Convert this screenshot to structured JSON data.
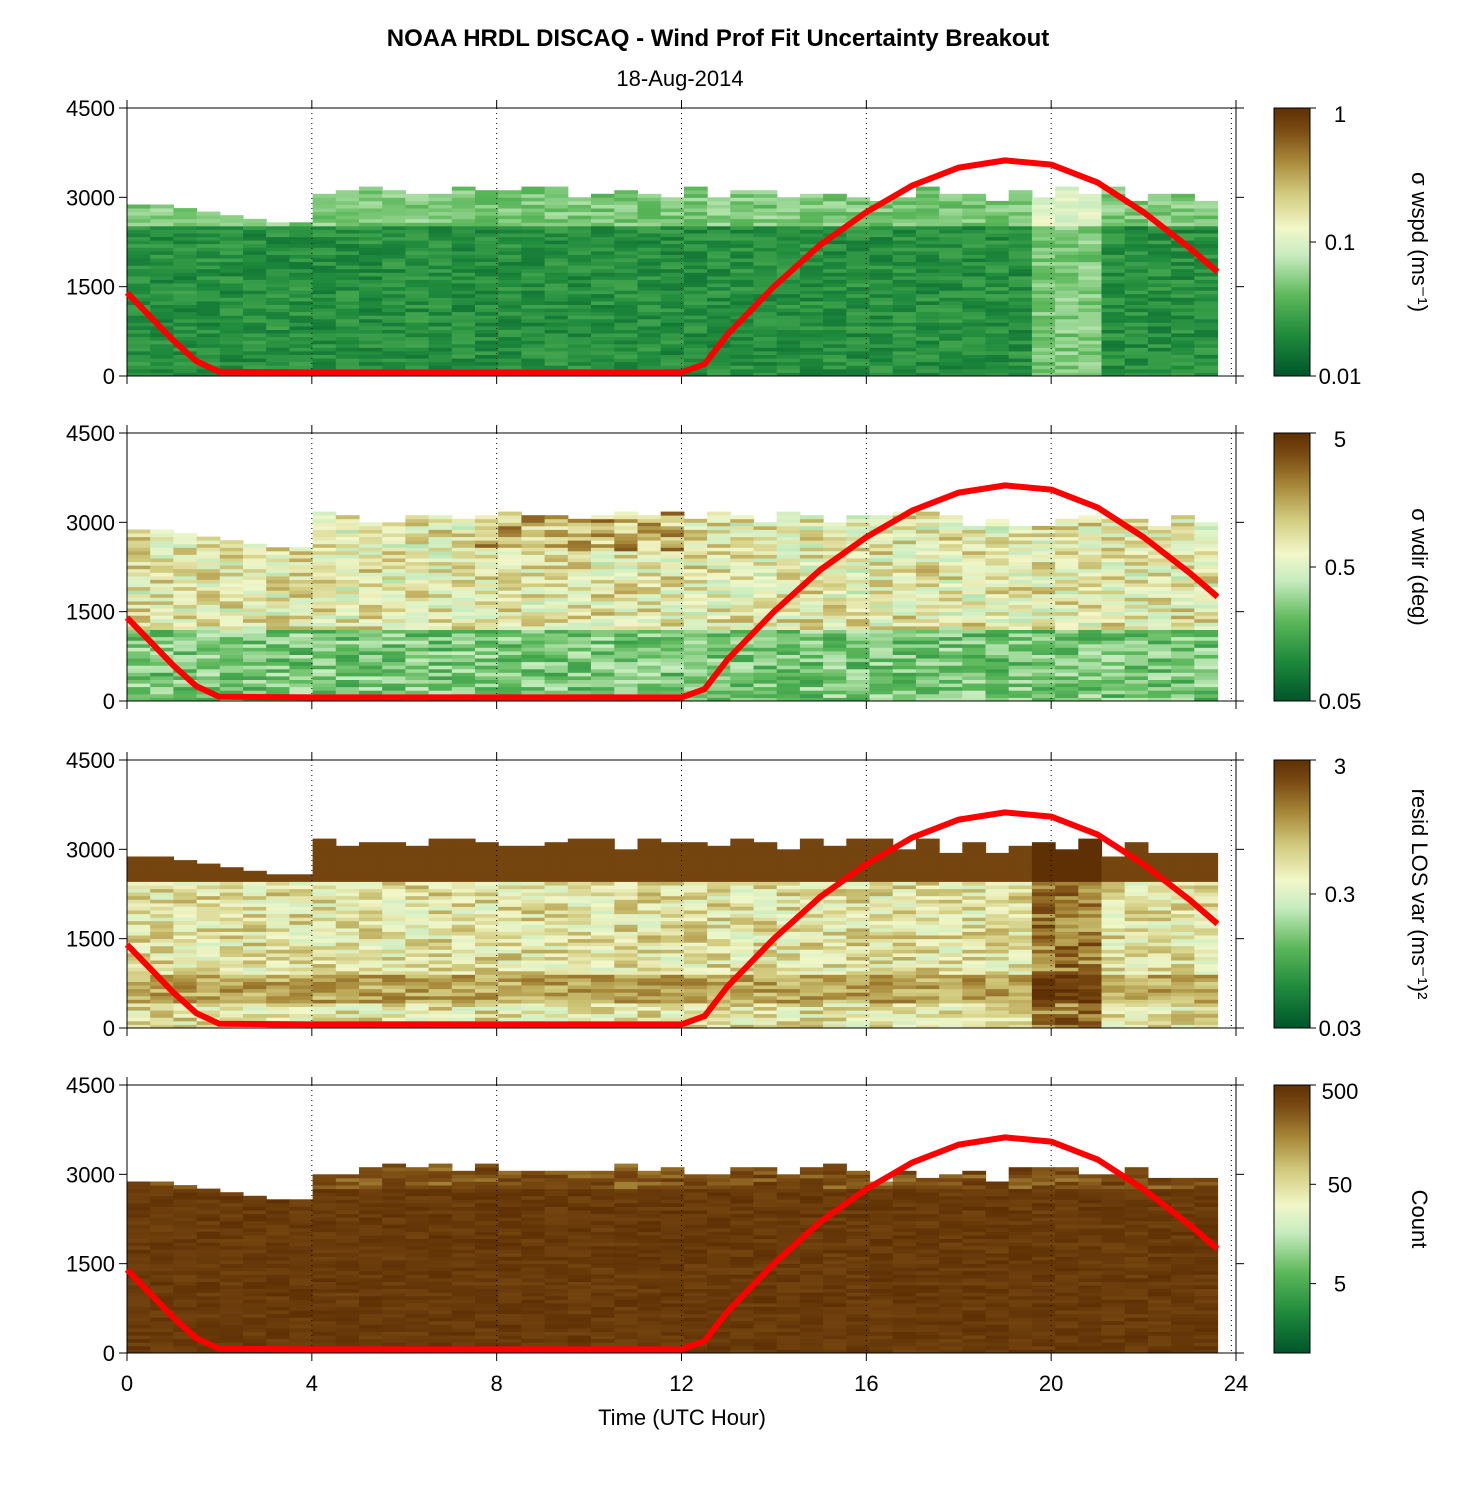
{
  "title": "NOAA HRDL DISCAQ - Wind Prof Fit Uncertainty Breakout",
  "subtitle": "18-Aug-2014",
  "chart_data": [
    {
      "type": "heatmap",
      "name": "sigma-wspd",
      "xlabel": "",
      "ylabel": "",
      "xlim": [
        0,
        24
      ],
      "ylim": [
        0,
        4500
      ],
      "yticks": [
        "0",
        "1500",
        "3000",
        "4500"
      ],
      "colorbar": {
        "label": "σ wspd (ms⁻¹)",
        "scale": "log",
        "range": [
          0.01,
          1
        ],
        "ticks": [
          "0.01",
          "0.1",
          "1"
        ]
      },
      "overlay_line": {
        "color": "#ff0000",
        "x": [
          0,
          0.5,
          1,
          1.5,
          2,
          4,
          8,
          12,
          12.5,
          13,
          14,
          15,
          16,
          17,
          18,
          19,
          20,
          21,
          22,
          23,
          23.6
        ],
        "y": [
          1400,
          1000,
          600,
          250,
          70,
          60,
          60,
          60,
          200,
          700,
          1500,
          2200,
          2750,
          3200,
          3500,
          3620,
          3550,
          3250,
          2750,
          2150,
          1750
        ]
      }
    },
    {
      "type": "heatmap",
      "name": "sigma-wdir",
      "xlabel": "",
      "ylabel": "",
      "xlim": [
        0,
        24
      ],
      "ylim": [
        0,
        4500
      ],
      "yticks": [
        "0",
        "1500",
        "3000",
        "4500"
      ],
      "colorbar": {
        "label": "σ wdir (deg)",
        "scale": "log",
        "range": [
          0.05,
          5
        ],
        "ticks": [
          "0.05",
          "0.5",
          "5"
        ]
      },
      "overlay_line": {
        "color": "#ff0000",
        "x": [
          0,
          0.5,
          1,
          1.5,
          2,
          4,
          8,
          12,
          12.5,
          13,
          14,
          15,
          16,
          17,
          18,
          19,
          20,
          21,
          22,
          23,
          23.6
        ],
        "y": [
          1400,
          1000,
          600,
          250,
          70,
          60,
          60,
          60,
          200,
          700,
          1500,
          2200,
          2750,
          3200,
          3500,
          3620,
          3550,
          3250,
          2750,
          2150,
          1750
        ]
      }
    },
    {
      "type": "heatmap",
      "name": "resid-los-var",
      "xlabel": "",
      "ylabel": "",
      "xlim": [
        0,
        24
      ],
      "ylim": [
        0,
        4500
      ],
      "yticks": [
        "0",
        "1500",
        "3000",
        "4500"
      ],
      "colorbar": {
        "label": "resid LOS var (ms⁻¹)²",
        "scale": "log",
        "range": [
          0.03,
          3
        ],
        "ticks": [
          "0.03",
          "0.3",
          "3"
        ]
      },
      "overlay_line": {
        "color": "#ff0000",
        "x": [
          0,
          0.5,
          1,
          1.5,
          2,
          4,
          8,
          12,
          12.5,
          13,
          14,
          15,
          16,
          17,
          18,
          19,
          20,
          21,
          22,
          23,
          23.6
        ],
        "y": [
          1400,
          1000,
          600,
          250,
          70,
          60,
          60,
          60,
          200,
          700,
          1500,
          2200,
          2750,
          3200,
          3500,
          3620,
          3550,
          3250,
          2750,
          2150,
          1750
        ]
      }
    },
    {
      "type": "heatmap",
      "name": "count",
      "xlabel": "Time (UTC Hour)",
      "ylabel": "",
      "xlim": [
        0,
        24
      ],
      "ylim": [
        0,
        4500
      ],
      "xticks": [
        "0",
        "4",
        "8",
        "12",
        "16",
        "20",
        "24"
      ],
      "yticks": [
        "0",
        "1500",
        "3000",
        "4500"
      ],
      "colorbar": {
        "label": "Count",
        "scale": "log",
        "range": [
          1,
          500
        ],
        "ticks": [
          "5",
          "50",
          "500"
        ]
      },
      "overlay_line": {
        "color": "#ff0000",
        "x": [
          0,
          0.5,
          1,
          1.5,
          2,
          4,
          8,
          12,
          12.5,
          13,
          14,
          15,
          16,
          17,
          18,
          19,
          20,
          21,
          22,
          23,
          23.6
        ],
        "y": [
          1400,
          1000,
          600,
          250,
          70,
          60,
          60,
          60,
          200,
          700,
          1500,
          2200,
          2750,
          3200,
          3500,
          3620,
          3550,
          3250,
          2750,
          2150,
          1750
        ]
      }
    }
  ],
  "colors": {
    "colormap": [
      "#00552a",
      "#1e8a3c",
      "#5cb85a",
      "#c7ecbf",
      "#f2f7c9",
      "#d1cb7e",
      "#a88a3a",
      "#7a4a12",
      "#5e3004"
    ],
    "line": "#ff0000"
  }
}
